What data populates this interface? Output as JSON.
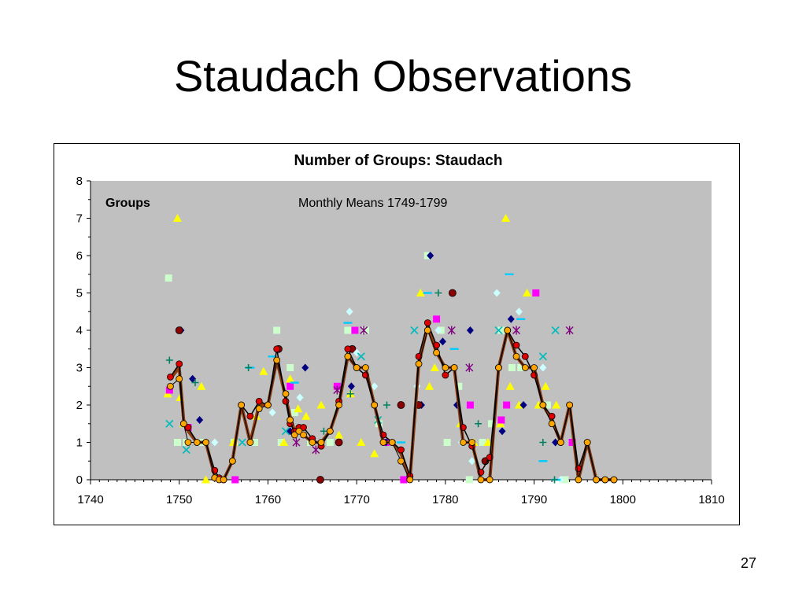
{
  "slide": {
    "title": "Staudach Observations",
    "page_number": "27"
  },
  "chart_data": {
    "type": "scatter",
    "title": "Number of Groups: Staudach",
    "ylabel": "Groups",
    "annotation": "Monthly Means 1749-1799",
    "xlim": [
      1740,
      1810
    ],
    "ylim": [
      0,
      8
    ],
    "x_ticks": [
      "1740",
      "1750",
      "1760",
      "1770",
      "1780",
      "1790",
      "1800",
      "1810"
    ],
    "y_ticks": [
      "0",
      "1",
      "2",
      "3",
      "4",
      "5",
      "6",
      "7",
      "8"
    ],
    "grid": false,
    "plot_background": "#c0c0c0",
    "legend": "none",
    "series": [
      {
        "kind": "line",
        "color": "#8b3a0f",
        "width": 4,
        "marker": "none",
        "x": [
          1749,
          1750,
          1750.5,
          1751,
          1752,
          1753,
          1754,
          1754.5,
          1755,
          1756,
          1757,
          1758,
          1759,
          1760,
          1761,
          1762,
          1762.5,
          1763,
          1763.5,
          1764,
          1765,
          1766,
          1767,
          1768,
          1769,
          1770,
          1771,
          1772,
          1773,
          1774,
          1775,
          1776,
          1777,
          1778,
          1779,
          1780,
          1781,
          1782,
          1783,
          1784,
          1785,
          1786,
          1787,
          1788,
          1789,
          1790,
          1791,
          1792,
          1793,
          1794,
          1795,
          1796,
          1797,
          1798,
          1799
        ],
        "y": [
          2.7,
          3.0,
          1.6,
          1.3,
          1.0,
          1.0,
          0.1,
          0.0,
          0.0,
          0.5,
          2.0,
          1.0,
          2.0,
          2.0,
          3.2,
          2.2,
          1.7,
          1.3,
          1.3,
          1.2,
          1.0,
          1.0,
          1.3,
          2.0,
          3.3,
          3.0,
          3.0,
          2.0,
          1.0,
          1.0,
          0.7,
          0.0,
          3.1,
          4.1,
          3.4,
          3.0,
          3.0,
          1.0,
          1.0,
          0.0,
          0.0,
          3.0,
          4.0,
          3.3,
          3.0,
          3.0,
          2.0,
          1.6,
          1.0,
          2.0,
          0.0,
          1.0,
          0.0,
          0.0,
          0.0
        ]
      },
      {
        "kind": "line",
        "color": "#000000",
        "width": 1.5,
        "marker": "circle",
        "marker_color": "#dd0000",
        "marker_size": 4,
        "x": [
          1749,
          1750,
          1750.5,
          1751,
          1752,
          1753,
          1754,
          1754.5,
          1755,
          1756,
          1757,
          1758,
          1759,
          1760,
          1761,
          1762,
          1762.5,
          1763,
          1763.5,
          1764,
          1765,
          1766,
          1767,
          1768,
          1769,
          1770,
          1771,
          1772,
          1773,
          1774,
          1775,
          1776,
          1777,
          1778,
          1779,
          1780,
          1781,
          1782,
          1783,
          1784,
          1785,
          1786,
          1787,
          1788,
          1789,
          1790,
          1791,
          1792,
          1793,
          1794,
          1795,
          1796,
          1797,
          1798,
          1799
        ],
        "y": [
          2.75,
          3.1,
          1.5,
          1.4,
          1.0,
          1.0,
          0.25,
          0.05,
          0.0,
          0.5,
          2.0,
          1.7,
          2.1,
          2.0,
          3.5,
          2.1,
          1.5,
          1.3,
          1.4,
          1.4,
          1.1,
          0.9,
          1.3,
          2.1,
          3.5,
          3.0,
          2.8,
          2.0,
          1.2,
          1.0,
          0.8,
          0.1,
          3.3,
          4.2,
          3.6,
          2.8,
          3.0,
          1.4,
          0.9,
          0.2,
          0.6,
          3.0,
          4.0,
          3.6,
          3.3,
          2.8,
          2.0,
          1.7,
          1.0,
          2.0,
          0.3,
          1.0,
          0.0,
          0.0,
          0.0
        ]
      },
      {
        "kind": "line",
        "color": "#000000",
        "width": 1,
        "marker": "circle",
        "marker_color": "#ffa500",
        "marker_size": 4,
        "x": [
          1749,
          1750,
          1750.5,
          1751,
          1752,
          1753,
          1754,
          1754.5,
          1755,
          1756,
          1757,
          1758,
          1759,
          1760,
          1761,
          1762,
          1762.5,
          1763,
          1763.5,
          1764,
          1765,
          1766,
          1767,
          1768,
          1769,
          1770,
          1771,
          1772,
          1773,
          1774,
          1775,
          1776,
          1777,
          1778,
          1779,
          1780,
          1781,
          1782,
          1783,
          1784,
          1785,
          1786,
          1787,
          1788,
          1789,
          1790,
          1791,
          1792,
          1793,
          1794,
          1795,
          1796,
          1797,
          1798,
          1799
        ],
        "y": [
          2.5,
          2.7,
          1.5,
          1.0,
          1.0,
          1.0,
          0.05,
          0.0,
          0.0,
          0.5,
          2.0,
          1.0,
          1.9,
          2.0,
          3.2,
          2.3,
          1.6,
          1.2,
          1.3,
          1.2,
          1.0,
          1.0,
          1.3,
          2.0,
          3.3,
          3.0,
          3.0,
          2.0,
          1.0,
          1.0,
          0.5,
          0.0,
          3.1,
          4.0,
          3.4,
          3.0,
          3.0,
          1.0,
          1.0,
          0.0,
          0.0,
          3.0,
          4.0,
          3.3,
          3.0,
          3.0,
          2.0,
          1.5,
          1.0,
          2.0,
          0.0,
          1.0,
          0.0,
          0.0,
          0.0
        ]
      },
      {
        "kind": "scatter",
        "marker": "square",
        "color": "#ccffcc",
        "x": [
          1748.8,
          1749.8,
          1750.8,
          1752.5,
          1756.2,
          1758.5,
          1761,
          1761.5,
          1762.5,
          1763,
          1764.8,
          1767,
          1769,
          1771,
          1772.5,
          1778,
          1779.5,
          1780.2,
          1781.5,
          1782.7,
          1784.2,
          1785.2,
          1786.3,
          1787.5,
          1788.5,
          1791.5,
          1793.5
        ],
        "y": [
          5.4,
          1.0,
          1.0,
          1.0,
          1.0,
          1.0,
          4.0,
          1.0,
          3.0,
          1.8,
          1.0,
          1.0,
          4.0,
          4.0,
          1.5,
          6.0,
          4.0,
          1.0,
          2.5,
          0.0,
          1.0,
          1.5,
          4.0,
          3.0,
          3.0,
          2.0,
          0.0
        ]
      },
      {
        "kind": "scatter",
        "marker": "triangle",
        "color": "#ffff00",
        "x": [
          1748.7,
          1749.8,
          1750.1,
          1750.5,
          1752.5,
          1753,
          1756.1,
          1758.7,
          1759.5,
          1761.8,
          1762.5,
          1763.4,
          1764.3,
          1766,
          1768,
          1769.3,
          1770.5,
          1772,
          1777.2,
          1778.2,
          1778.8,
          1781.7,
          1783.2,
          1784.8,
          1786.2,
          1786.8,
          1787.3,
          1788.3,
          1789.2,
          1790.5,
          1791.3,
          1792.5
        ],
        "y": [
          2.3,
          7.0,
          2.2,
          1.5,
          2.5,
          0.0,
          1.0,
          1.7,
          2.9,
          1.0,
          2.7,
          1.9,
          1.7,
          2.0,
          1.2,
          2.3,
          1.0,
          0.7,
          5.0,
          2.5,
          3.0,
          1.5,
          1.0,
          1.0,
          1.5,
          7.0,
          2.5,
          2.0,
          5.0,
          2.0,
          2.5,
          2.0
        ]
      },
      {
        "kind": "scatter",
        "marker": "square",
        "color": "#ff00ff",
        "x": [
          1748.9,
          1751,
          1756.3,
          1762.5,
          1767.8,
          1769.8,
          1773.3,
          1775.3,
          1779,
          1782.8,
          1786.3,
          1786.9,
          1790.2,
          1794.3
        ],
        "y": [
          2.4,
          1.4,
          0.0,
          2.5,
          2.5,
          4.0,
          1.0,
          0.0,
          4.3,
          2.0,
          1.6,
          2.0,
          5.0,
          1.0
        ]
      },
      {
        "kind": "scatter",
        "marker": "diamond",
        "color": "#000080",
        "x": [
          1750.2,
          1751.5,
          1752.3,
          1762.5,
          1764.2,
          1769.4,
          1773.3,
          1777.3,
          1778.3,
          1779.7,
          1781.3,
          1782.8,
          1786.4,
          1787.4,
          1788.8,
          1792.4
        ],
        "y": [
          4.0,
          2.7,
          1.6,
          1.3,
          3.0,
          2.5,
          1.0,
          2.0,
          6.0,
          3.7,
          2.0,
          4.0,
          1.3,
          4.3,
          2.0,
          1.0
        ]
      },
      {
        "kind": "scatter",
        "marker": "circle",
        "color": "#8b0000",
        "x": [
          1750,
          1761.2,
          1765.9,
          1768,
          1769.5,
          1775,
          1777,
          1780.8,
          1784.5
        ],
        "y": [
          4.0,
          3.5,
          0.0,
          1.0,
          3.5,
          2.0,
          2.0,
          5.0,
          0.5
        ]
      },
      {
        "kind": "scatter",
        "marker": "diamond",
        "color": "#ccffff",
        "x": [
          1754,
          1760.5,
          1763.6,
          1769.2,
          1770,
          1772,
          1776.8,
          1779.2,
          1781.8,
          1783,
          1785.8,
          1788.3,
          1791,
          1793
        ],
        "y": [
          1.0,
          1.8,
          2.2,
          4.5,
          3.4,
          2.5,
          2.5,
          4.0,
          1.0,
          0.5,
          5.0,
          4.5,
          3.0,
          0.0
        ]
      },
      {
        "kind": "scatter",
        "marker": "dash",
        "color": "#00ccff",
        "x": [
          1758,
          1760.5,
          1763,
          1769,
          1775,
          1778,
          1781,
          1787.2,
          1788.5,
          1791,
          1792.5
        ],
        "y": [
          3.0,
          3.3,
          2.6,
          4.2,
          1.0,
          5.0,
          3.5,
          5.5,
          4.3,
          0.5,
          0.0
        ]
      },
      {
        "kind": "scatter",
        "marker": "x",
        "color": "#00bbbb",
        "x": [
          1748.9,
          1750.8,
          1757.1,
          1762,
          1770.5,
          1772.4,
          1776.5,
          1786,
          1791,
          1792.4
        ],
        "y": [
          1.5,
          0.8,
          1.0,
          1.3,
          3.3,
          1.6,
          4.0,
          4.0,
          3.3,
          4.0
        ]
      },
      {
        "kind": "scatter",
        "marker": "plus",
        "color": "#008060",
        "x": [
          1748.9,
          1751.8,
          1757.8,
          1766.3,
          1769.3,
          1773.4,
          1779.2,
          1783.7,
          1791,
          1792.3
        ],
        "y": [
          3.2,
          2.6,
          3.0,
          1.3,
          2.3,
          2.0,
          5.0,
          1.5,
          1.0,
          0.0
        ]
      },
      {
        "kind": "scatter",
        "marker": "star",
        "color": "#800080",
        "x": [
          1763.2,
          1765.4,
          1767.8,
          1770.8,
          1780.7,
          1782.7,
          1788,
          1794
        ],
        "y": [
          1.0,
          0.8,
          2.4,
          4.0,
          4.0,
          3.0,
          4.0,
          4.0
        ]
      }
    ]
  }
}
